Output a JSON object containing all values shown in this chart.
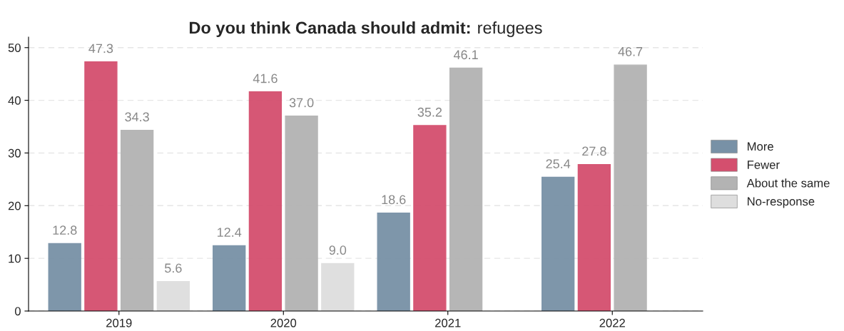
{
  "chart_data": {
    "type": "bar",
    "title": "Do you think Canada should admit: refugees",
    "categories": [
      "2019",
      "2020",
      "2021",
      "2022"
    ],
    "series": [
      {
        "name": "More",
        "color": "#7891a6",
        "values": [
          12.8,
          12.4,
          18.6,
          25.4
        ],
        "value_labels": [
          "12.8",
          "12.4",
          "18.6",
          "25.4"
        ]
      },
      {
        "name": "Fewer",
        "color": "#d44f6e",
        "values": [
          47.3,
          41.6,
          35.2,
          27.8
        ],
        "value_labels": [
          "47.3",
          "41.6",
          "35.2",
          "27.8"
        ]
      },
      {
        "name": "About the same",
        "color": "#b3b3b3",
        "values": [
          34.3,
          37.0,
          46.1,
          46.7
        ],
        "value_labels": [
          "34.3",
          "37.0",
          "46.1",
          "46.7"
        ]
      },
      {
        "name": "No-response",
        "color": "#dedede",
        "values": [
          5.6,
          9.0,
          null,
          null
        ],
        "value_labels": [
          "5.6",
          "9.0",
          null,
          null
        ]
      }
    ],
    "ylim": [
      0,
      52
    ],
    "yticks": [
      0,
      10,
      20,
      30,
      40,
      50
    ],
    "grid": "y",
    "legend": "right"
  }
}
